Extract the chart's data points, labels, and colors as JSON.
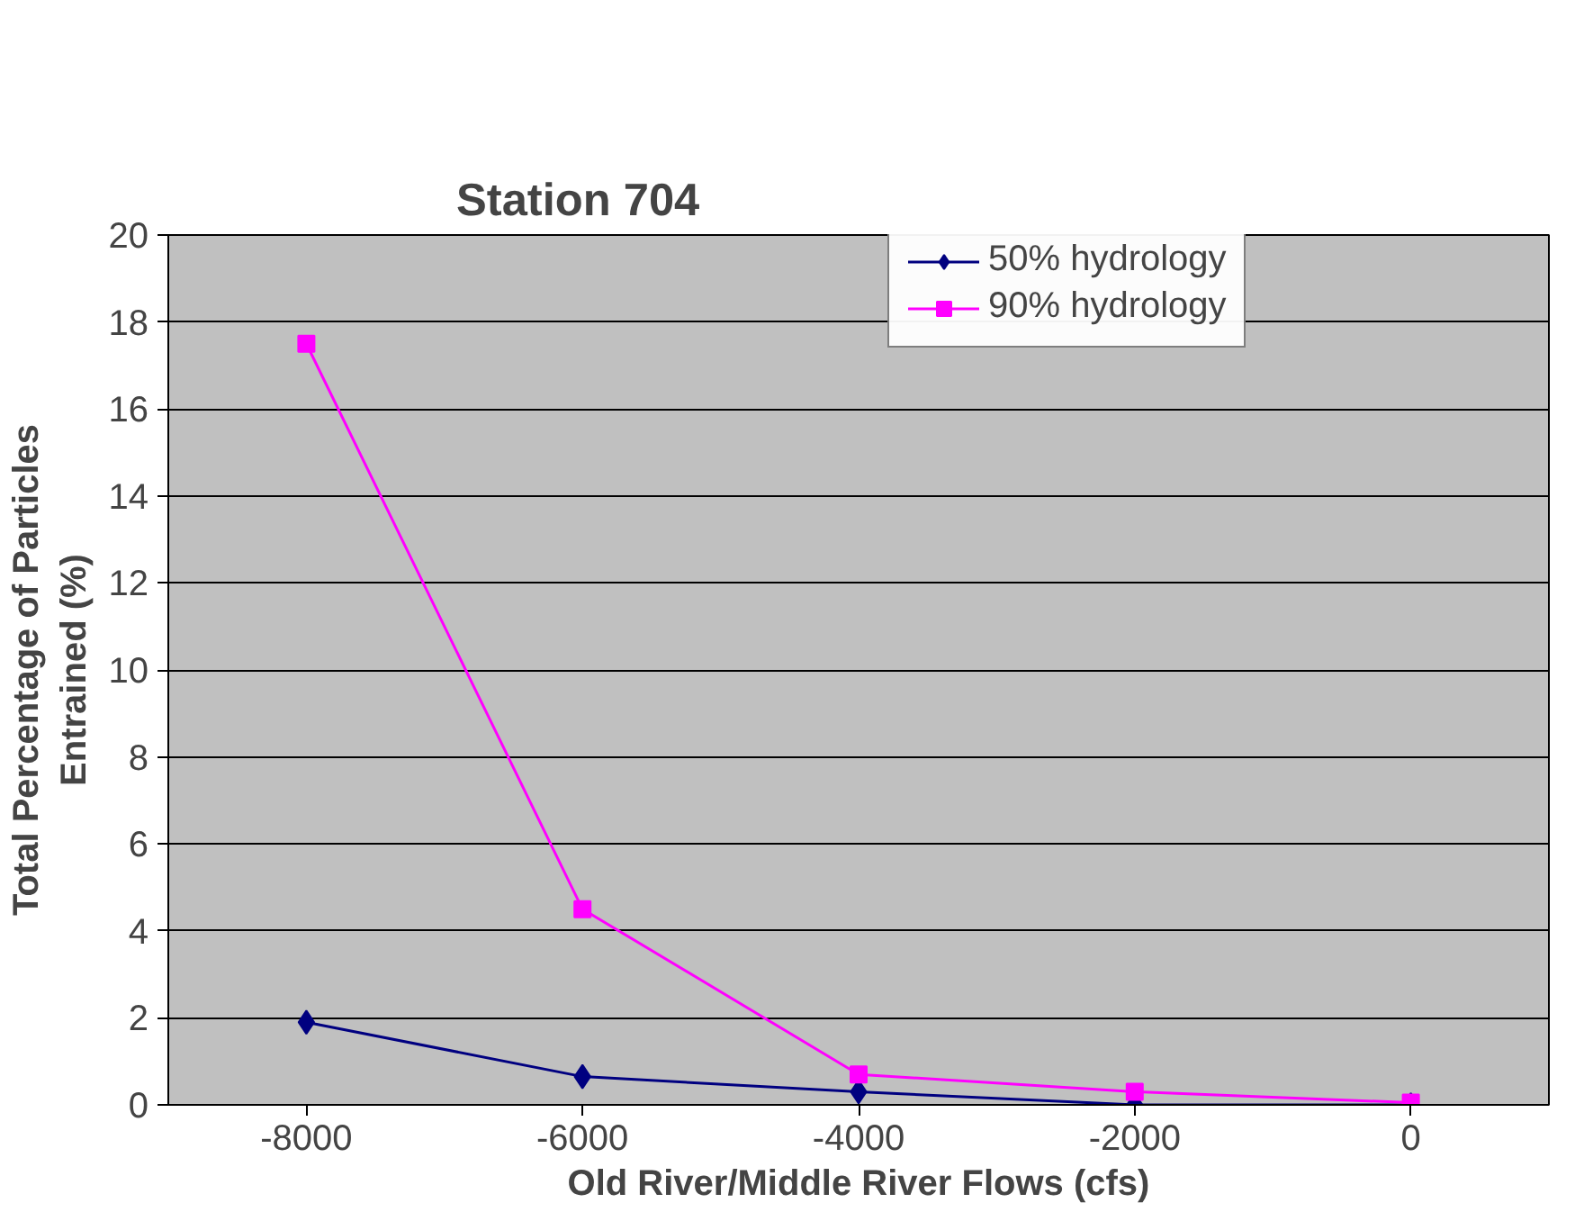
{
  "chart_data": {
    "type": "line",
    "title": "Station 704",
    "xlabel": "Old River/Middle River Flows (cfs)",
    "ylabel": "Total Percentage of Particles\nEntrained (%)",
    "categories": [
      "-8000",
      "-6000",
      "-4000",
      "-2000",
      "0"
    ],
    "series": [
      {
        "name": "50% hydrology",
        "color": "#000080",
        "marker": "diamond",
        "values": [
          1.9,
          0.65,
          0.3,
          0.0,
          0.0
        ]
      },
      {
        "name": "90% hydrology",
        "color": "#ff00ff",
        "marker": "square",
        "values": [
          17.5,
          4.5,
          0.7,
          0.3,
          0.05
        ]
      }
    ],
    "ylim": [
      0,
      20
    ],
    "yticks": [
      0,
      2,
      4,
      6,
      8,
      10,
      12,
      14,
      16,
      18,
      20
    ],
    "grid": "y",
    "legend": "top right"
  }
}
